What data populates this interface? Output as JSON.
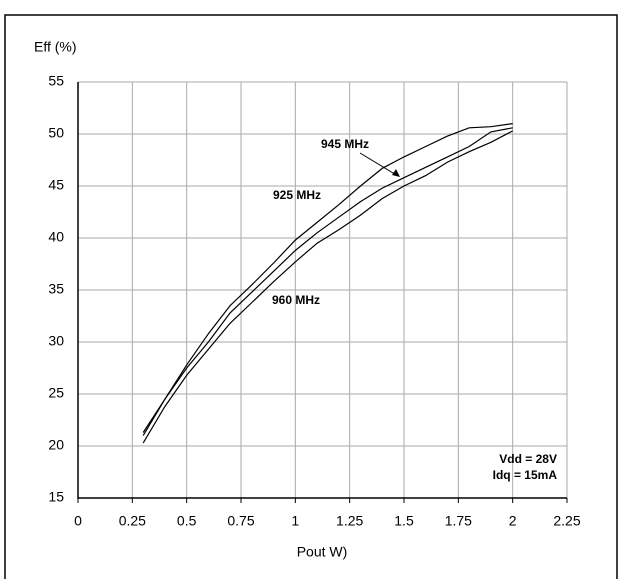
{
  "chart_data": {
    "type": "line",
    "y_label": "Eff (%)",
    "x_label": "Pout W)",
    "x": [
      0.3,
      0.4,
      0.5,
      0.6,
      0.7,
      0.8,
      0.9,
      1.0,
      1.1,
      1.2,
      1.3,
      1.4,
      1.5,
      1.6,
      1.7,
      1.8,
      1.9,
      2.0
    ],
    "series": [
      {
        "name": "925 MHz",
        "color": "#000000",
        "values": [
          21.3,
          24.5,
          27.8,
          30.8,
          33.5,
          35.5,
          37.6,
          39.8,
          41.5,
          43.2,
          45.0,
          46.7,
          47.8,
          48.8,
          49.8,
          50.6,
          50.7,
          51.0
        ]
      },
      {
        "name": "945 MHz",
        "color": "#000000",
        "values": [
          21.0,
          24.5,
          27.5,
          30.0,
          32.8,
          34.8,
          36.8,
          38.8,
          40.5,
          42.0,
          43.5,
          44.8,
          45.8,
          46.8,
          47.8,
          48.8,
          50.2,
          50.6
        ]
      },
      {
        "name": "960 MHz",
        "color": "#000000",
        "values": [
          20.3,
          23.8,
          26.8,
          29.3,
          31.8,
          33.8,
          35.8,
          37.7,
          39.5,
          40.8,
          42.2,
          43.8,
          45.0,
          46.0,
          47.3,
          48.3,
          49.2,
          50.3
        ]
      }
    ],
    "notes": [
      "Vdd = 28V",
      "Idq = 15mA"
    ],
    "xlim": [
      0,
      2.25
    ],
    "xticks": [
      0,
      0.25,
      0.5,
      0.75,
      1,
      1.25,
      1.5,
      1.75,
      2,
      2.25
    ],
    "ylim": [
      15,
      55
    ],
    "yticks": [
      15,
      20,
      25,
      30,
      35,
      40,
      45,
      50,
      55
    ],
    "grid": true
  }
}
